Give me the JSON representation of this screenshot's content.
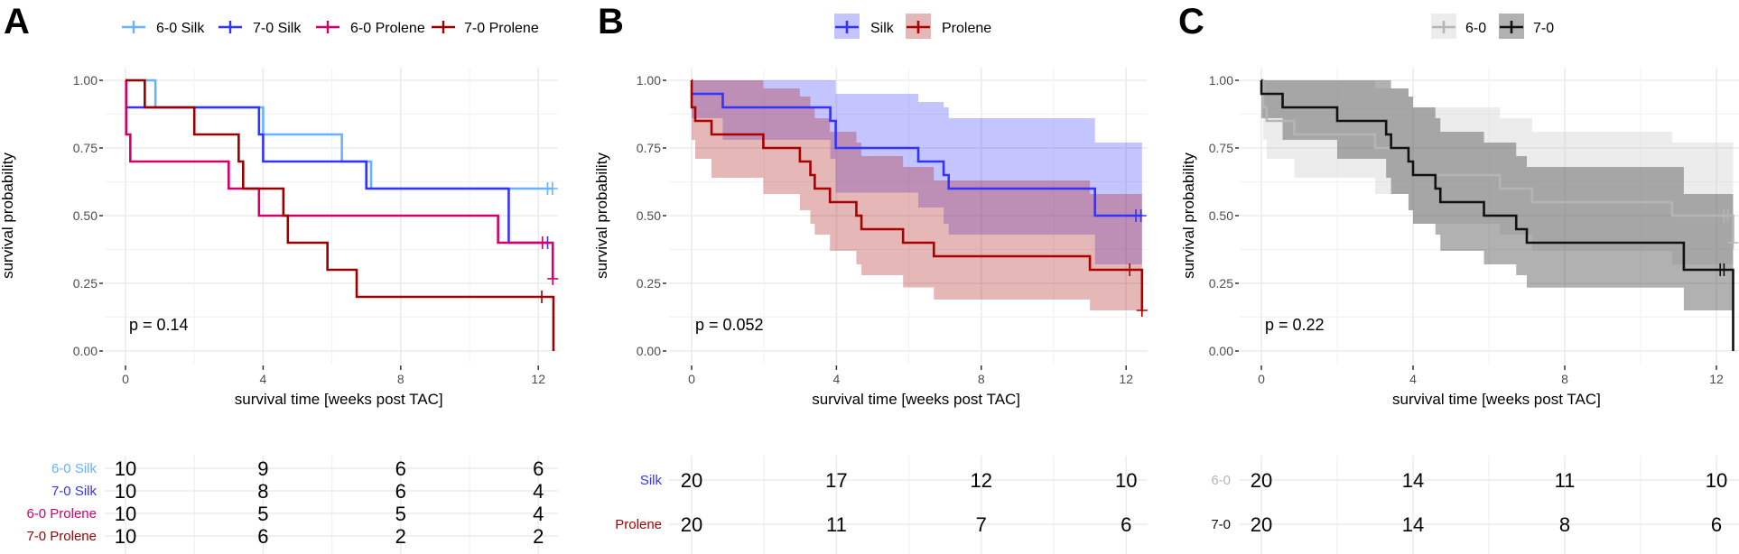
{
  "chart_data": [
    {
      "type": "line",
      "title": "A",
      "legend_position": "top",
      "xlabel": "survival time [weeks post TAC]",
      "ylabel": "survival probability",
      "x_ticks": [
        "0",
        "4",
        "8",
        "12"
      ],
      "y_ticks": [
        "0.00",
        "0.25",
        "0.50",
        "0.75",
        "1.00"
      ],
      "ylim": [
        0,
        1
      ],
      "grid": true,
      "p_value": "p = 0.14",
      "series": [
        {
          "name": "6-0 Silk",
          "color": "#66b2ff",
          "times": [
            0,
            0.87,
            4.0,
            6.29,
            7.14
          ],
          "surv": [
            1,
            0.9,
            0.8,
            0.7,
            0.6
          ],
          "end": 12.41,
          "censored": [
            [
              12.27,
              0.6
            ],
            [
              12.41,
              0.6
            ]
          ]
        },
        {
          "name": "7-0 Silk",
          "color": "#3333ff",
          "times": [
            0,
            3.88,
            4.0,
            7.0,
            11.14
          ],
          "surv": [
            0.9,
            0.8,
            0.7,
            0.6,
            0.4
          ],
          "end": 12.27,
          "censored": [
            [
              12.27,
              0.4
            ]
          ]
        },
        {
          "name": "6-0 Prolene",
          "color": "#d1006a",
          "times": [
            0,
            0.02,
            0.14,
            3.0,
            3.88,
            10.83,
            12.42
          ],
          "surv": [
            1,
            0.8,
            0.7,
            0.6,
            0.5,
            0.4,
            0.267
          ],
          "end": 12.42,
          "censored": [
            [
              12.12,
              0.4
            ],
            [
              12.42,
              0.267
            ]
          ]
        },
        {
          "name": "7-0 Prolene",
          "color": "#990000",
          "times": [
            0,
            0.56,
            2.0,
            3.29,
            3.42,
            4.59,
            4.72,
            5.87,
            6.72,
            12.44
          ],
          "surv": [
            1,
            0.9,
            0.8,
            0.7,
            0.6,
            0.5,
            0.4,
            0.3,
            0.2,
            0
          ],
          "end": 12.44,
          "censored": [
            [
              12.1,
              0.2
            ]
          ]
        }
      ],
      "risk_table": {
        "times": [
          0,
          4,
          8,
          12
        ],
        "rows": [
          {
            "label": "6-0 Silk",
            "color": "#66b2ff",
            "values": [
              "10",
              "9",
              "6",
              "6"
            ]
          },
          {
            "label": "7-0 Silk",
            "color": "#3333ff",
            "values": [
              "10",
              "8",
              "6",
              "4"
            ]
          },
          {
            "label": "6-0 Prolene",
            "color": "#d1006a",
            "values": [
              "10",
              "5",
              "5",
              "4"
            ]
          },
          {
            "label": "7-0 Prolene",
            "color": "#990000",
            "values": [
              "10",
              "6",
              "2",
              "2"
            ]
          }
        ]
      }
    },
    {
      "type": "line",
      "title": "B",
      "legend_position": "top",
      "xlabel": "survival time [weeks post TAC]",
      "ylabel": "survival probability",
      "x_ticks": [
        "0",
        "4",
        "8",
        "12"
      ],
      "y_ticks": [
        "0.00",
        "0.25",
        "0.50",
        "0.75",
        "1.00"
      ],
      "ylim": [
        0,
        1
      ],
      "grid": true,
      "p_value": "p = 0.052",
      "series": [
        {
          "name": "Silk",
          "color": "#3333ff",
          "band": "rgba(60,60,255,0.30)",
          "times": [
            0,
            0.86,
            3.83,
            3.98,
            6.26,
            6.96,
            7.1,
            11.14
          ],
          "surv": [
            0.95,
            0.9,
            0.85,
            0.75,
            0.7,
            0.65,
            0.6,
            0.5
          ],
          "lower": [
            0.86,
            0.78,
            0.71,
            0.585,
            0.53,
            0.47,
            0.43,
            0.32
          ],
          "upper": [
            1,
            1,
            1,
            0.95,
            0.92,
            0.9,
            0.86,
            0.77
          ],
          "end": 12.44,
          "censored": [
            [
              12.27,
              0.5
            ],
            [
              12.41,
              0.5
            ]
          ]
        },
        {
          "name": "Prolene",
          "color": "#aa0000",
          "band": "rgba(175,30,30,0.32)",
          "times": [
            0,
            0.001,
            0.1,
            0.55,
            1.98,
            2.99,
            3.28,
            3.4,
            3.82,
            4.55,
            4.69,
            5.84,
            6.69,
            11.0,
            12.44
          ],
          "surv": [
            1,
            0.9,
            0.85,
            0.8,
            0.75,
            0.7,
            0.65,
            0.6,
            0.55,
            0.5,
            0.45,
            0.4,
            0.35,
            0.3,
            0.15
          ],
          "lower": [
            1,
            0.78,
            0.71,
            0.64,
            0.58,
            0.52,
            0.47,
            0.43,
            0.37,
            0.32,
            0.28,
            0.235,
            0.19,
            0.15,
            0.15
          ],
          "upper": [
            1,
            1,
            1,
            1,
            0.97,
            0.94,
            0.9,
            0.86,
            0.81,
            0.77,
            0.72,
            0.68,
            0.63,
            0.58,
            0.58
          ],
          "end": 12.44,
          "censored": [
            [
              12.1,
              0.3
            ],
            [
              12.44,
              0.15
            ]
          ]
        }
      ],
      "risk_table": {
        "times": [
          0,
          4,
          8,
          12
        ],
        "rows": [
          {
            "label": "Silk",
            "color": "#3333ff",
            "values": [
              "20",
              "17",
              "12",
              "10"
            ]
          },
          {
            "label": "Prolene",
            "color": "#aa0000",
            "values": [
              "20",
              "11",
              "7",
              "6"
            ]
          }
        ]
      }
    },
    {
      "type": "line",
      "title": "C",
      "legend_position": "top",
      "xlabel": "survival time [weeks post TAC]",
      "ylabel": "survival probability",
      "x_ticks": [
        "0",
        "4",
        "8",
        "12"
      ],
      "y_ticks": [
        "0.00",
        "0.25",
        "0.50",
        "0.75",
        "1.00"
      ],
      "ylim": [
        0,
        1
      ],
      "grid": true,
      "p_value": "p = 0.22",
      "series": [
        {
          "name": "6-0",
          "color": "#b5b5b5",
          "band": "rgba(200,200,200,0.35)",
          "times": [
            0,
            0.05,
            0.14,
            0.87,
            3.0,
            3.88,
            4.0,
            6.29,
            7.14,
            10.83,
            12.44
          ],
          "surv": [
            1,
            0.9,
            0.85,
            0.8,
            0.75,
            0.7,
            0.65,
            0.6,
            0.55,
            0.5,
            0.4
          ],
          "lower": [
            1,
            0.78,
            0.71,
            0.64,
            0.58,
            0.52,
            0.47,
            0.43,
            0.37,
            0.32,
            0.2
          ],
          "upper": [
            1,
            1,
            1,
            1,
            0.97,
            0.94,
            0.9,
            0.86,
            0.81,
            0.77,
            0.7
          ],
          "end": 12.44,
          "censored": [
            [
              12.2,
              0.5
            ],
            [
              12.3,
              0.5
            ],
            [
              12.44,
              0.4
            ]
          ]
        },
        {
          "name": "7-0",
          "color": "#111111",
          "band": "rgba(70,70,70,0.42)",
          "times": [
            0,
            0.001,
            0.56,
            2.0,
            3.29,
            3.42,
            3.88,
            4.0,
            4.59,
            4.72,
            5.87,
            6.72,
            7.0,
            11.14,
            12.44
          ],
          "surv": [
            1,
            0.95,
            0.9,
            0.85,
            0.8,
            0.75,
            0.7,
            0.65,
            0.6,
            0.55,
            0.5,
            0.45,
            0.4,
            0.3,
            0
          ],
          "lower": [
            1,
            0.86,
            0.78,
            0.71,
            0.64,
            0.58,
            0.52,
            0.47,
            0.43,
            0.37,
            0.32,
            0.28,
            0.234,
            0.15,
            0
          ],
          "upper": [
            1,
            1,
            1,
            1,
            1,
            0.97,
            0.94,
            0.9,
            0.86,
            0.81,
            0.77,
            0.72,
            0.68,
            0.58,
            0
          ],
          "end": 12.44,
          "censored": [
            [
              12.1,
              0.3
            ],
            [
              12.2,
              0.3
            ]
          ]
        }
      ],
      "risk_table": {
        "times": [
          0,
          4,
          8,
          12
        ],
        "rows": [
          {
            "label": "6-0",
            "color": "#b5b5b5",
            "values": [
              "20",
              "14",
              "11",
              "10"
            ]
          },
          {
            "label": "7-0",
            "color": "#111111",
            "values": [
              "20",
              "14",
              "8",
              "6"
            ]
          }
        ]
      }
    }
  ]
}
